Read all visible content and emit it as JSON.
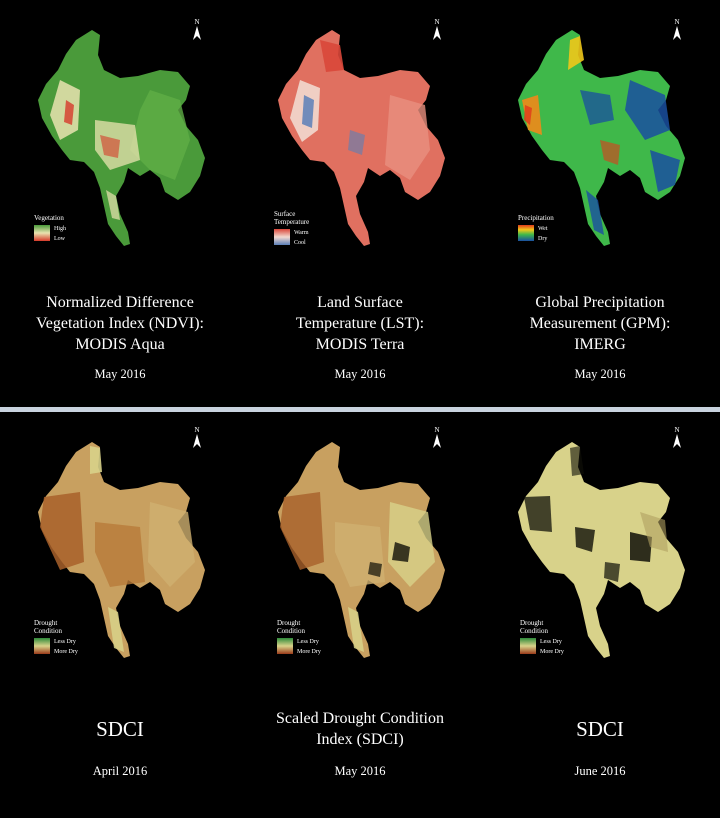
{
  "colors": {
    "ndvi_high": "#4a9a3a",
    "ndvi_mid": "#e9e3b0",
    "ndvi_low": "#d63a2a",
    "lst_warm": "#d9473a",
    "lst_mid": "#f2d9cf",
    "lst_cool": "#5a7fb8",
    "gpm_wet": "#f08a1a",
    "gpm_mid": "#3fb84a",
    "gpm_dry": "#1a4fa0",
    "sdci_less": "#2e8a3a",
    "sdci_mid": "#d8d28a",
    "sdci_more": "#9a3a1a"
  },
  "top_panel": [
    {
      "icon": "north-arrow-icon",
      "north": "N",
      "legend": {
        "title": "Vegetation",
        "high": "High",
        "low": "Low"
      },
      "caption": [
        "Normalized Difference",
        "Vegetation Index (NDVI):",
        "MODIS Aqua"
      ],
      "date": "May 2016"
    },
    {
      "icon": "north-arrow-icon",
      "north": "N",
      "legend": {
        "title": "Surface Temperature",
        "high": "Warm",
        "low": "Cool"
      },
      "caption": [
        "Land Surface",
        "Temperature (LST):",
        "MODIS Terra"
      ],
      "date": "May 2016"
    },
    {
      "icon": "north-arrow-icon",
      "north": "N",
      "legend": {
        "title": "Precipitation",
        "high": "Wet",
        "low": "Dry"
      },
      "caption": [
        "Global Precipitation",
        "Measurement (GPM):",
        "IMERG"
      ],
      "date": "May 2016"
    }
  ],
  "bottom_panel": [
    {
      "icon": "north-arrow-icon",
      "north": "N",
      "legend": {
        "title": "Drought Condition",
        "high": "Less Dry",
        "low": "More Dry"
      },
      "caption": [
        "SDCI"
      ],
      "date": "April 2016"
    },
    {
      "icon": "north-arrow-icon",
      "north": "N",
      "legend": {
        "title": "Drought Condition",
        "high": "Less Dry",
        "low": "More Dry"
      },
      "caption": [
        "Scaled Drought Condition",
        "Index (SDCI)"
      ],
      "date": "May 2016"
    },
    {
      "icon": "north-arrow-icon",
      "north": "N",
      "legend": {
        "title": "Drought Condition",
        "high": "Less Dry",
        "low": "More Dry"
      },
      "caption": [
        "SDCI"
      ],
      "date": "June 2016"
    }
  ]
}
